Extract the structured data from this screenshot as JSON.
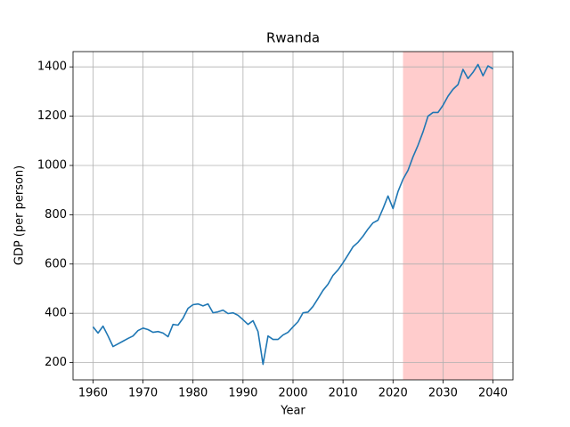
{
  "chart_data": {
    "type": "line",
    "title": "Rwanda",
    "x_label": "Year",
    "y_label": "GDP (per person)",
    "x": [
      1960,
      1961,
      1962,
      1963,
      1964,
      1965,
      1966,
      1967,
      1968,
      1969,
      1970,
      1971,
      1972,
      1973,
      1974,
      1975,
      1976,
      1977,
      1978,
      1979,
      1980,
      1981,
      1982,
      1983,
      1984,
      1985,
      1986,
      1987,
      1988,
      1989,
      1990,
      1991,
      1992,
      1993,
      1994,
      1995,
      1996,
      1997,
      1998,
      1999,
      2000,
      2001,
      2002,
      2003,
      2004,
      2005,
      2006,
      2007,
      2008,
      2009,
      2010,
      2011,
      2012,
      2013,
      2014,
      2015,
      2016,
      2017,
      2018,
      2019,
      2020,
      2021,
      2022,
      2023,
      2024,
      2025,
      2026,
      2027,
      2028,
      2029,
      2030,
      2031,
      2032,
      2033,
      2034,
      2035,
      2036,
      2037,
      2038,
      2039,
      2040
    ],
    "values": [
      345,
      320,
      348,
      308,
      265,
      276,
      287,
      298,
      308,
      330,
      340,
      334,
      323,
      326,
      320,
      305,
      355,
      352,
      380,
      420,
      435,
      438,
      430,
      438,
      402,
      406,
      413,
      399,
      402,
      392,
      374,
      355,
      370,
      326,
      193,
      308,
      294,
      294,
      312,
      323,
      345,
      366,
      402,
      405,
      428,
      460,
      493,
      518,
      554,
      576,
      605,
      637,
      670,
      688,
      713,
      742,
      767,
      778,
      825,
      876,
      825,
      894,
      944,
      980,
      1035,
      1082,
      1136,
      1200,
      1215,
      1215,
      1244,
      1281,
      1309,
      1328,
      1390,
      1353,
      1378,
      1410,
      1364,
      1404,
      1392
    ],
    "color": "#1f77b4",
    "highlight": {
      "x": [
        2022,
        2040
      ],
      "color": "#ffcccc"
    },
    "xlim": [
      1956,
      2044
    ],
    "xticks": [
      1960,
      1970,
      1980,
      1990,
      2000,
      2010,
      2020,
      2030,
      2040
    ],
    "ylim": [
      130,
      1462
    ],
    "yticks": [
      200,
      400,
      600,
      800,
      1000,
      1200,
      1400
    ],
    "grid": true
  }
}
